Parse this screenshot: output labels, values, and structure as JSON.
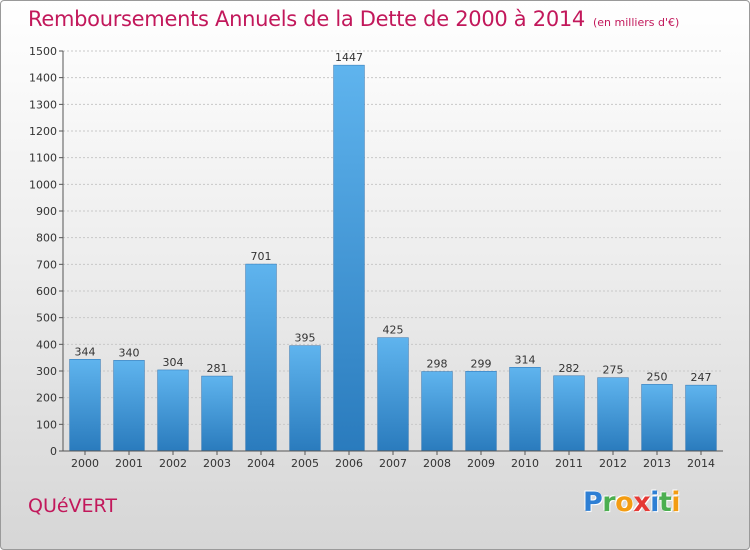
{
  "title": "Remboursements Annuels de la Dette de 2000 à 2014",
  "subtitle": "(en milliers d'€)",
  "town": "QUéVERT",
  "logo": {
    "letters": [
      {
        "ch": "P",
        "color": "#2e7fd4"
      },
      {
        "ch": "r",
        "color": "#4caf50"
      },
      {
        "ch": "o",
        "color": "#f39c12"
      },
      {
        "ch": "x",
        "color": "#e53935"
      },
      {
        "ch": "i",
        "color": "#2e7fd4"
      },
      {
        "ch": "t",
        "color": "#4caf50"
      },
      {
        "ch": "i",
        "color": "#f39c12"
      }
    ]
  },
  "colors": {
    "bar_top": "#5fb4ee",
    "bar_bottom": "#2a7bbd",
    "title": "#c2185b",
    "grid": "#c8c8c8"
  },
  "chart_data": {
    "type": "bar",
    "title": "Remboursements Annuels de la Dette de 2000 à 2014",
    "subtitle": "(en milliers d'€)",
    "xlabel": "",
    "ylabel": "",
    "ylim": [
      0,
      1500
    ],
    "yticks": [
      0,
      100,
      200,
      300,
      400,
      500,
      600,
      700,
      800,
      900,
      1000,
      1100,
      1200,
      1300,
      1400,
      1500
    ],
    "grid": true,
    "categories": [
      "2000",
      "2001",
      "2002",
      "2003",
      "2004",
      "2005",
      "2006",
      "2007",
      "2008",
      "2009",
      "2010",
      "2011",
      "2012",
      "2013",
      "2014"
    ],
    "values": [
      344,
      340,
      304,
      281,
      701,
      395,
      1447,
      425,
      298,
      299,
      314,
      282,
      275,
      250,
      247
    ]
  }
}
